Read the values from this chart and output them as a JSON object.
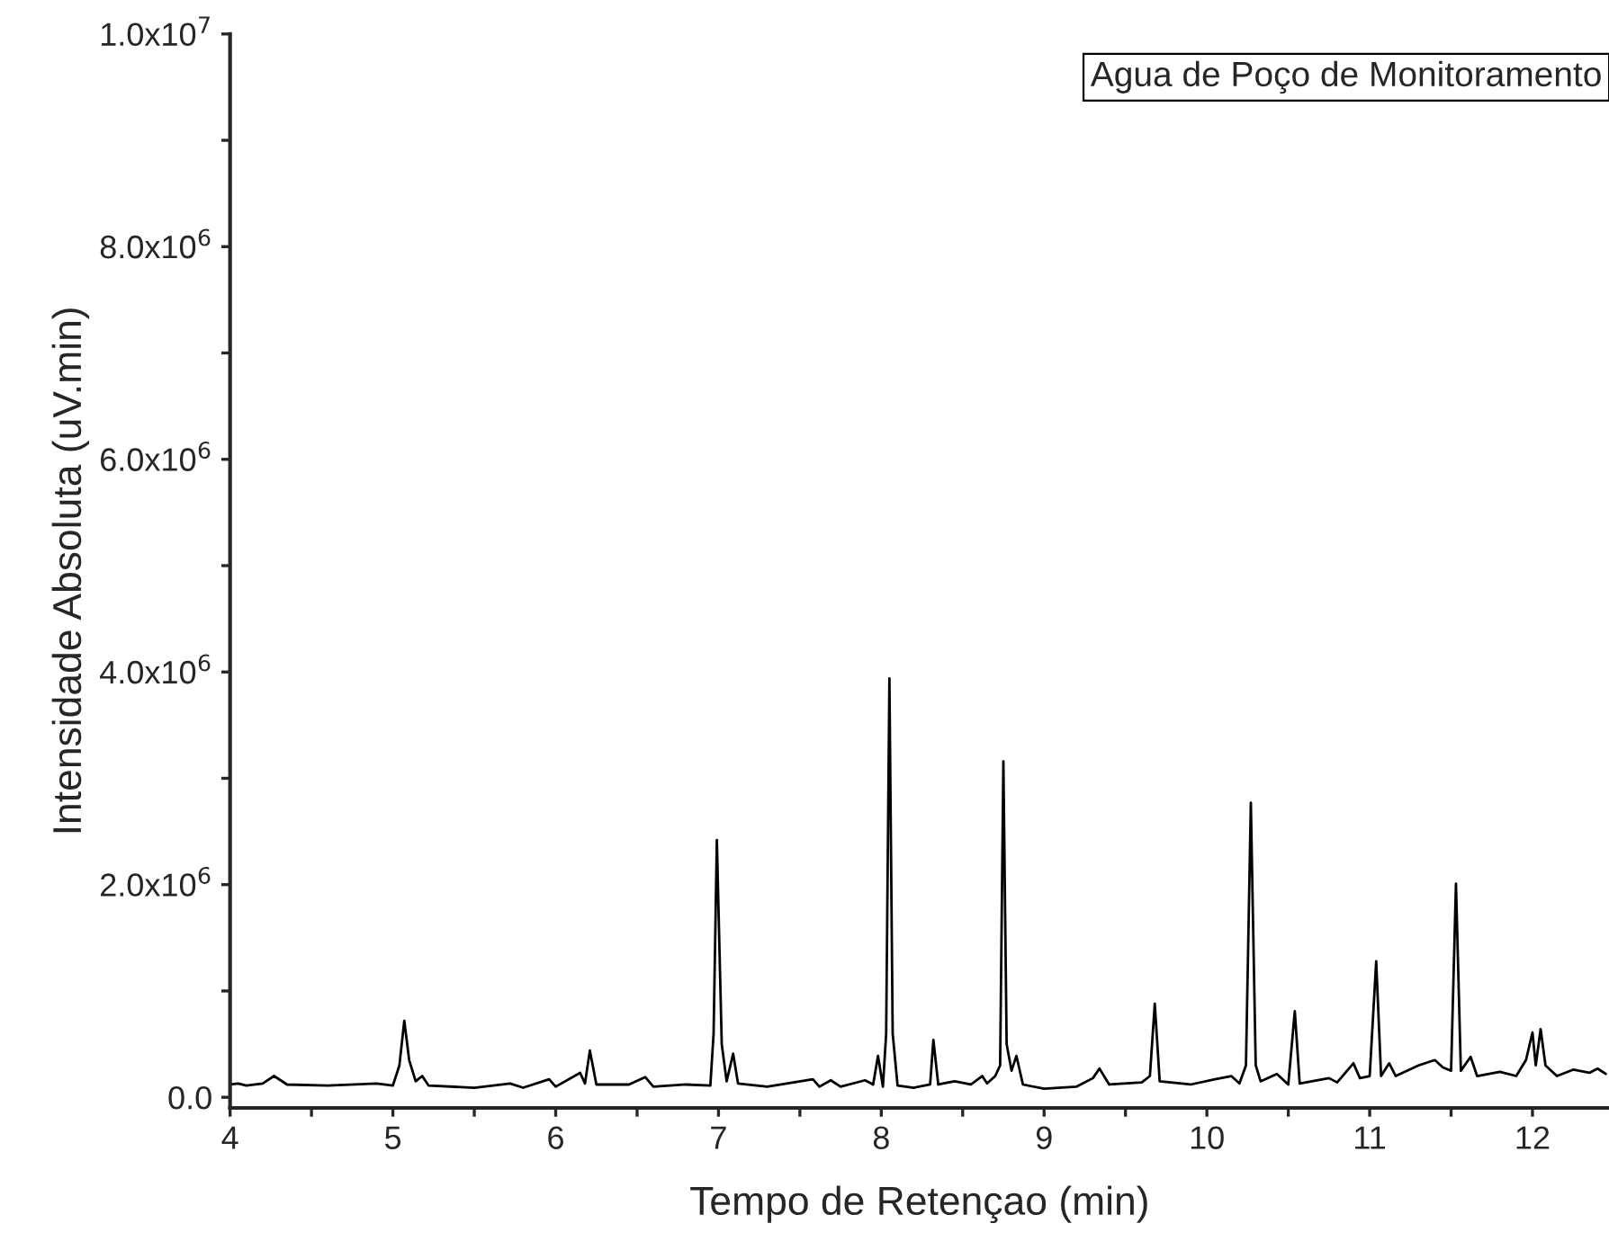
{
  "chart_data": {
    "type": "line",
    "xlabel": "Tempo de Retençao (min)",
    "ylabel": "Intensidade Absoluta (uV.min)",
    "annotations": [
      "Agua de Poço de Monitoramento"
    ],
    "xlim": [
      4,
      12.47
    ],
    "xticks": [
      4,
      {
        "value": 4.5,
        "label": null
      },
      5,
      {
        "value": 5.5,
        "label": null
      },
      6,
      {
        "value": 6.5,
        "label": null
      },
      7,
      {
        "value": 7.5,
        "label": null
      },
      8,
      {
        "value": 8.5,
        "label": null
      },
      9,
      {
        "value": 9.5,
        "label": null
      },
      10,
      {
        "value": 10.5,
        "label": null
      },
      11,
      {
        "value": 11.5,
        "label": null
      },
      12
    ],
    "ylim": [
      -100000,
      10000000
    ],
    "yticks": [
      {
        "value": 0,
        "label": "0.0"
      },
      {
        "value": 1000000,
        "label": null
      },
      {
        "value": 2000000,
        "label": "2.0x10$^{6}$"
      },
      {
        "value": 3000000,
        "label": null
      },
      {
        "value": 4000000,
        "label": "4.0x10$^{6}$"
      },
      {
        "value": 5000000,
        "label": null
      },
      {
        "value": 6000000,
        "label": "6.0x10$^{6}$"
      },
      {
        "value": 7000000,
        "label": null
      },
      {
        "value": 8000000,
        "label": "8.0x10$^{6}$"
      },
      {
        "value": 9000000,
        "label": null
      },
      {
        "value": 10000000,
        "label": "1.0x10$^{7}$"
      }
    ],
    "grid": false,
    "legend": false,
    "marker": "none",
    "line_style": "solid",
    "series": [
      {
        "color": "#000000",
        "x": [
          4.0,
          4.05,
          4.1,
          4.2,
          4.27,
          4.35,
          4.6,
          4.9,
          5.0,
          5.04,
          5.07,
          5.1,
          5.14,
          5.18,
          5.22,
          5.5,
          5.72,
          5.8,
          5.96,
          6.0,
          6.15,
          6.18,
          6.21,
          6.25,
          6.45,
          6.55,
          6.6,
          6.8,
          6.95,
          6.97,
          6.99,
          7.02,
          7.05,
          7.09,
          7.12,
          7.3,
          7.58,
          7.62,
          7.69,
          7.75,
          7.9,
          7.95,
          7.98,
          8.01,
          8.03,
          8.05,
          8.07,
          8.1,
          8.2,
          8.3,
          8.32,
          8.35,
          8.45,
          8.55,
          8.62,
          8.65,
          8.7,
          8.73,
          8.75,
          8.77,
          8.8,
          8.83,
          8.87,
          9.0,
          9.2,
          9.3,
          9.34,
          9.4,
          9.6,
          9.65,
          9.68,
          9.71,
          9.9,
          10.05,
          10.15,
          10.2,
          10.24,
          10.27,
          10.3,
          10.33,
          10.43,
          10.5,
          10.54,
          10.57,
          10.75,
          10.8,
          10.9,
          10.94,
          11.0,
          11.04,
          11.07,
          11.12,
          11.16,
          11.3,
          11.4,
          11.45,
          11.5,
          11.53,
          11.56,
          11.62,
          11.66,
          11.8,
          11.9,
          11.96,
          12.0,
          12.02,
          12.05,
          12.08,
          12.15,
          12.25,
          12.35,
          12.4,
          12.45
        ],
        "values": [
          120000,
          130000,
          110000,
          130000,
          200000,
          120000,
          110000,
          130000,
          110000,
          300000,
          720000,
          350000,
          150000,
          200000,
          110000,
          90000,
          130000,
          90000,
          170000,
          100000,
          230000,
          130000,
          440000,
          120000,
          120000,
          190000,
          100000,
          120000,
          110000,
          600000,
          2420000,
          500000,
          150000,
          410000,
          130000,
          100000,
          170000,
          100000,
          160000,
          100000,
          160000,
          120000,
          390000,
          100000,
          600000,
          3940000,
          600000,
          110000,
          90000,
          120000,
          540000,
          120000,
          150000,
          120000,
          200000,
          130000,
          200000,
          300000,
          3160000,
          500000,
          250000,
          390000,
          120000,
          80000,
          100000,
          180000,
          270000,
          120000,
          140000,
          200000,
          880000,
          150000,
          120000,
          170000,
          200000,
          130000,
          300000,
          2770000,
          300000,
          150000,
          220000,
          120000,
          810000,
          130000,
          180000,
          140000,
          320000,
          180000,
          200000,
          1280000,
          200000,
          320000,
          200000,
          300000,
          350000,
          280000,
          250000,
          2010000,
          250000,
          380000,
          200000,
          240000,
          200000,
          350000,
          610000,
          300000,
          640000,
          300000,
          200000,
          260000,
          230000,
          270000,
          220000
        ]
      }
    ]
  }
}
